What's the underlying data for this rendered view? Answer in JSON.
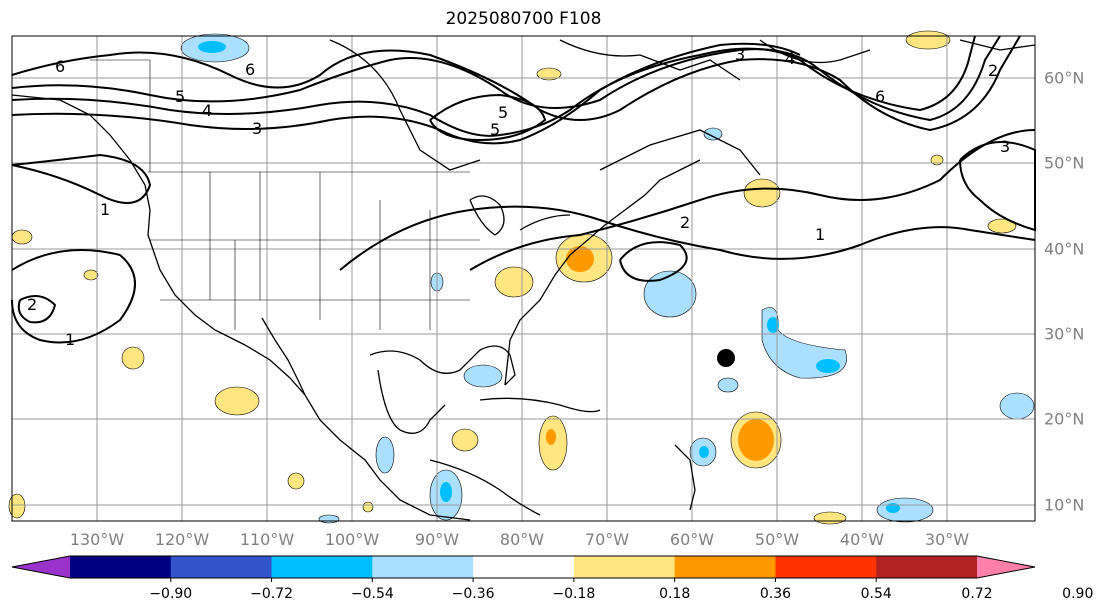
{
  "title": "2025080700 F108",
  "lon_labels": [
    "130°W",
    "120°W",
    "110°W",
    "100°W",
    "90°W",
    "80°W",
    "70°W",
    "60°W",
    "50°W",
    "40°W",
    "30°W"
  ],
  "lat_labels": [
    "60°N",
    "50°N",
    "40°N",
    "30°N",
    "20°N",
    "10°N"
  ],
  "contour_labels": [
    "6",
    "5",
    "4",
    "3",
    "6",
    "5",
    "3",
    "4",
    "6",
    "5",
    "2",
    "1",
    "1",
    "2",
    "1",
    "3",
    "2"
  ],
  "colorbar": {
    "ticks": [
      "−0.90",
      "−0.72",
      "−0.54",
      "−0.36",
      "−0.18",
      "0.18",
      "0.36",
      "0.54",
      "0.72",
      "0.90"
    ],
    "colors": [
      "#9933cc",
      "#000080",
      "#3355cc",
      "#00bfff",
      "#aadfff",
      "#ffffff",
      "#ffe680",
      "#ff9900",
      "#ff3300",
      "#b22222",
      "#ff80aa"
    ]
  },
  "marker": "storm-position-dot"
}
